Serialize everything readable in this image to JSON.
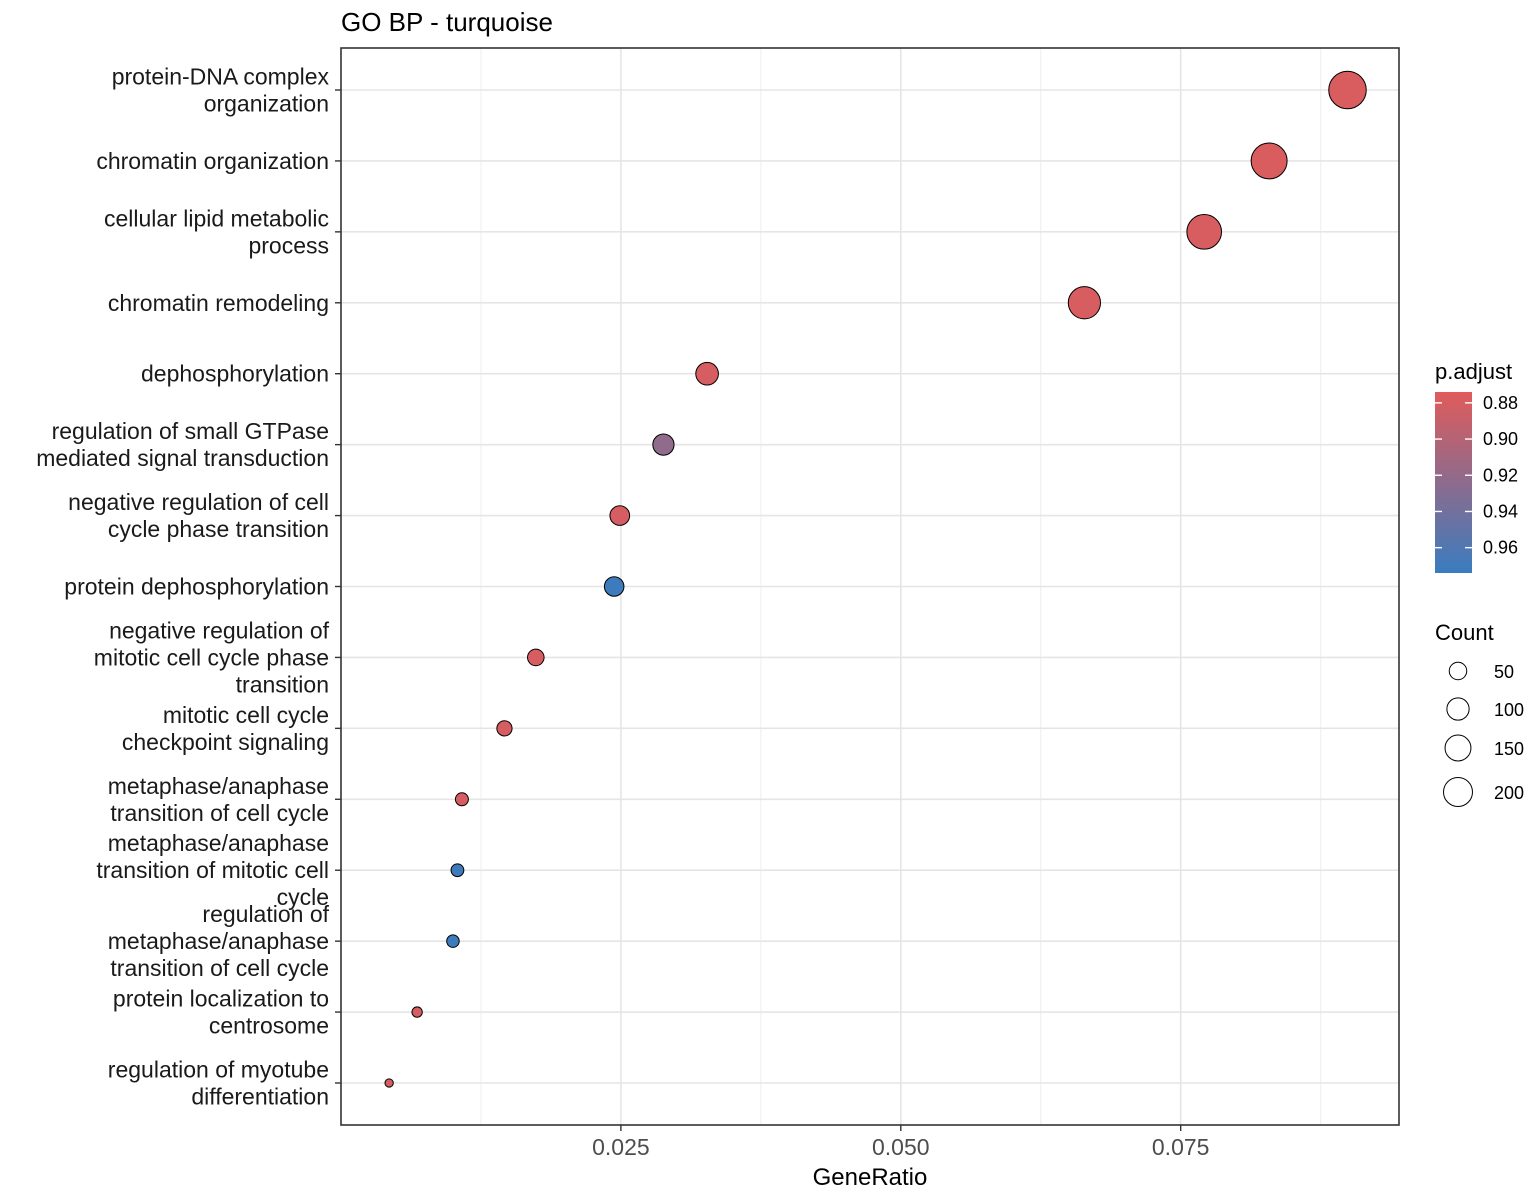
{
  "chart_data": {
    "type": "scatter",
    "title": "GO BP - turquoise",
    "xlabel": "GeneRatio",
    "ylabel": "",
    "xlim": [
      0.0,
      0.0945
    ],
    "xticks": [
      0.025,
      0.05,
      0.075
    ],
    "xtick_labels": [
      "0.025",
      "0.050",
      "0.075"
    ],
    "grid": true,
    "legend_position": "right",
    "points": [
      {
        "term": "protein-DNA complex\norganization",
        "gene_ratio": 0.0899,
        "count": 225,
        "p_adjust": 0.878
      },
      {
        "term": "chromatin organization",
        "gene_ratio": 0.0829,
        "count": 207,
        "p_adjust": 0.878
      },
      {
        "term": "cellular lipid metabolic\nprocess",
        "gene_ratio": 0.0771,
        "count": 192,
        "p_adjust": 0.879
      },
      {
        "term": "chromatin remodeling",
        "gene_ratio": 0.0664,
        "count": 166,
        "p_adjust": 0.879
      },
      {
        "term": "dephosphorylation",
        "gene_ratio": 0.0327,
        "count": 82,
        "p_adjust": 0.88
      },
      {
        "term": "regulation of small GTPase\nmediated signal transduction",
        "gene_ratio": 0.0288,
        "count": 72,
        "p_adjust": 0.922
      },
      {
        "term": "negative regulation of cell\ncycle phase transition",
        "gene_ratio": 0.0249,
        "count": 62,
        "p_adjust": 0.88
      },
      {
        "term": "protein dephosphorylation",
        "gene_ratio": 0.0244,
        "count": 61,
        "p_adjust": 0.972
      },
      {
        "term": "negative regulation of\nmitotic cell cycle phase\ntransition",
        "gene_ratio": 0.0174,
        "count": 44,
        "p_adjust": 0.88
      },
      {
        "term": "mitotic cell cycle\ncheckpoint signaling",
        "gene_ratio": 0.0146,
        "count": 37,
        "p_adjust": 0.88
      },
      {
        "term": "metaphase/anaphase\ntransition of cell cycle",
        "gene_ratio": 0.0108,
        "count": 27,
        "p_adjust": 0.88
      },
      {
        "term": "metaphase/anaphase\ntransition of mitotic cell\ncycle",
        "gene_ratio": 0.0104,
        "count": 26,
        "p_adjust": 0.972
      },
      {
        "term": "regulation of\nmetaphase/anaphase\ntransition of cell cycle",
        "gene_ratio": 0.01,
        "count": 25,
        "p_adjust": 0.972
      },
      {
        "term": "protein localization to\ncentrosome",
        "gene_ratio": 0.0068,
        "count": 17,
        "p_adjust": 0.88
      },
      {
        "term": "regulation of myotube\ndifferentiation",
        "gene_ratio": 0.0043,
        "count": 11,
        "p_adjust": 0.88
      }
    ],
    "color_legend": {
      "title": "p.adjust",
      "ticks": [
        "0.88",
        "0.90",
        "0.92",
        "0.94",
        "0.96"
      ],
      "range": [
        0.874,
        0.974
      ],
      "colors": [
        "#e05b5b",
        "#3a7cbf"
      ]
    },
    "size_legend": {
      "title": "Count",
      "values": [
        50,
        100,
        150,
        200
      ],
      "labels": [
        "50",
        "100",
        "150",
        "200"
      ]
    }
  }
}
